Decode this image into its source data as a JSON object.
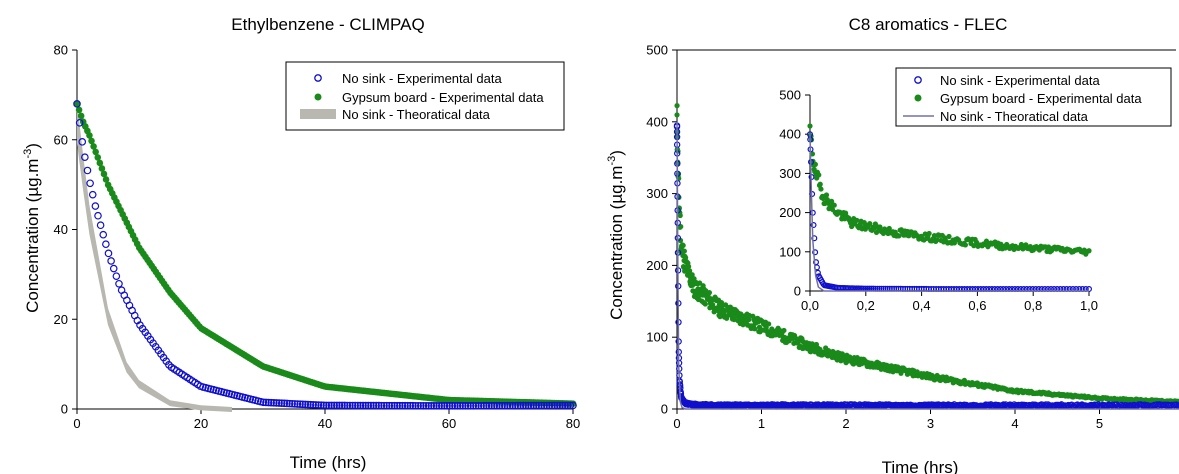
{
  "chart_data": [
    {
      "type": "scatter",
      "title": "Ethylbenzene - CLIMPAQ",
      "xlabel": "Time (hrs)",
      "ylabel": "Concentration (µg.m",
      "ylabel_sup": "-3",
      "ylabel_tail": ")",
      "xlim": [
        0,
        80
      ],
      "ylim": [
        0,
        80
      ],
      "xticks": [
        "0",
        "20",
        "40",
        "60",
        "80"
      ],
      "yticks": [
        "0",
        "20",
        "40",
        "60",
        "80"
      ],
      "grid": false,
      "legend_position": "top-right",
      "series": [
        {
          "name": "No sink - Experimental data",
          "marker": "open-circle",
          "color": "#1010cc",
          "x": [
            0,
            1,
            2,
            3,
            5,
            7,
            10,
            15,
            20,
            30,
            40,
            60,
            80
          ],
          "y": [
            68,
            58,
            51,
            45,
            35,
            27,
            19,
            9.5,
            5,
            1.5,
            0.8,
            0.7,
            0.8
          ]
        },
        {
          "name": "Gypsum board - Experimental data",
          "marker": "filled-circle",
          "color": "#1a8a1a",
          "x": [
            0,
            1,
            2,
            5,
            10,
            15,
            20,
            30,
            40,
            60,
            80
          ],
          "y": [
            68,
            64,
            61,
            50,
            36,
            26,
            18,
            9.5,
            5,
            2,
            1.2
          ]
        },
        {
          "name": "No sink - Theoratical data",
          "marker": "band",
          "color": "#b8b8b0",
          "x": [
            0,
            1,
            2,
            5,
            8,
            10,
            15,
            20,
            25
          ],
          "y": [
            68,
            56,
            45,
            22,
            10,
            6,
            1.5,
            0.4,
            0
          ]
        }
      ]
    },
    {
      "type": "scatter",
      "title": "C8 aromatics - FLEC",
      "xlabel": "Time (hrs)",
      "ylabel": "Concentration (µg.m",
      "ylabel_sup": "-3",
      "ylabel_tail": ")",
      "xlim": [
        0,
        6
      ],
      "ylim": [
        0,
        500
      ],
      "xticks": [
        "0",
        "1",
        "2",
        "3",
        "4",
        "5"
      ],
      "yticks": [
        "0",
        "100",
        "200",
        "300",
        "400",
        "500"
      ],
      "grid": false,
      "legend_position": "top-right",
      "series": [
        {
          "name": "No sink - Experimental data",
          "marker": "open-circle",
          "color": "#1010cc",
          "x": [
            0,
            0.01,
            0.02,
            0.03,
            0.05,
            0.1,
            0.2,
            0.5,
            1,
            2,
            3,
            4,
            5,
            6
          ],
          "y": [
            395,
            240,
            85,
            40,
            15,
            8,
            6,
            5,
            5,
            5,
            5,
            5,
            5,
            5
          ]
        },
        {
          "name": "Gypsum board - Experimental data",
          "marker": "filled-circle",
          "color": "#1a8a1a",
          "x": [
            0,
            0.02,
            0.05,
            0.1,
            0.2,
            0.5,
            1,
            1.5,
            2,
            3,
            4,
            5,
            6
          ],
          "y": [
            400,
            300,
            230,
            200,
            170,
            140,
            115,
            90,
            70,
            45,
            25,
            15,
            10
          ]
        },
        {
          "name": "No sink - Theoratical data",
          "marker": "line",
          "color": "#7070a8",
          "x": [
            0,
            0.01,
            0.02,
            0.04,
            0.06,
            0.1,
            6
          ],
          "y": [
            400,
            200,
            60,
            10,
            2,
            0,
            0
          ]
        }
      ],
      "inset": {
        "xlim": [
          0,
          1.0
        ],
        "ylim": [
          0,
          500
        ],
        "xticks": [
          "0,0",
          "0,2",
          "0,4",
          "0,6",
          "0,8",
          "1,0"
        ],
        "yticks": [
          "0",
          "100",
          "200",
          "300",
          "400",
          "500"
        ],
        "series": [
          {
            "name": "No sink - Experimental data",
            "marker": "open-circle",
            "color": "#1010cc",
            "x": [
              0,
              0.01,
              0.02,
              0.03,
              0.05,
              0.1,
              0.2,
              0.5,
              1.0
            ],
            "y": [
              400,
              200,
              80,
              40,
              15,
              8,
              6,
              5,
              5
            ]
          },
          {
            "name": "Gypsum board - Experimental data",
            "marker": "filled-circle",
            "color": "#1a8a1a",
            "x": [
              0,
              0.02,
              0.05,
              0.1,
              0.15,
              0.2,
              0.3,
              0.5,
              0.7,
              1.0
            ],
            "y": [
              395,
              300,
              240,
              200,
              175,
              165,
              150,
              130,
              115,
              100
            ]
          },
          {
            "name": "No sink - Theoratical data",
            "marker": "line",
            "color": "#7070a8",
            "x": [
              0,
              0.005,
              0.01,
              0.02,
              0.03,
              0.05,
              1.0
            ],
            "y": [
              400,
              250,
              130,
              40,
              10,
              0,
              0
            ]
          }
        ]
      }
    }
  ]
}
